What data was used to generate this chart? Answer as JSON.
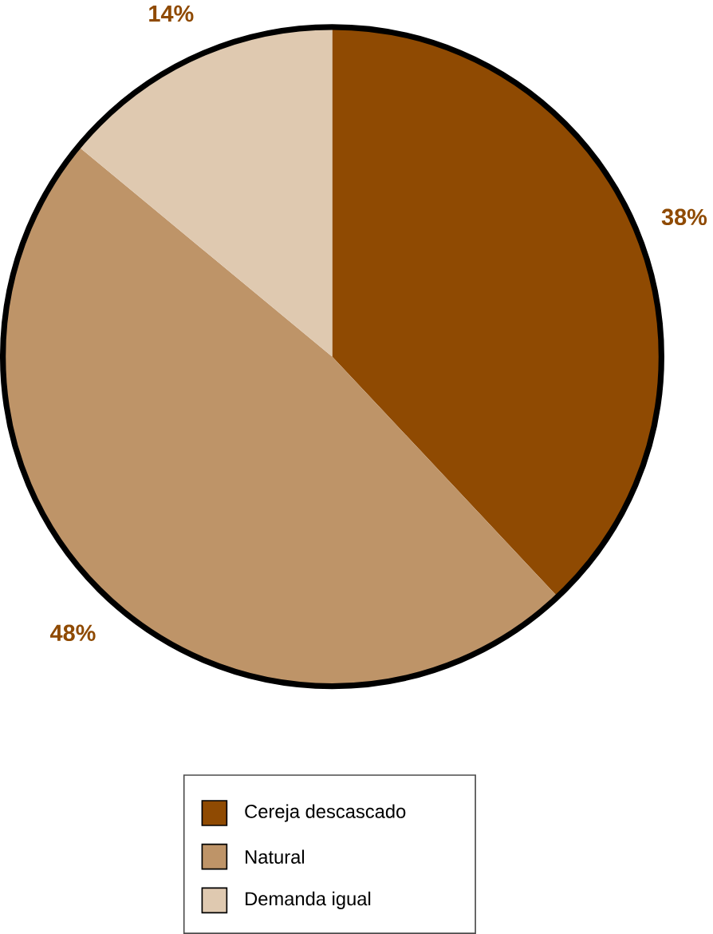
{
  "chart_data": {
    "type": "pie",
    "categories": [
      "Cereja descascado",
      "Natural",
      "Demanda igual"
    ],
    "values": [
      38,
      48,
      14
    ],
    "colors": [
      "#8f4a02",
      "#be9468",
      "#dfc9b0"
    ],
    "value_labels": [
      "38%",
      "48%",
      "14%"
    ],
    "legend": "bottom"
  }
}
